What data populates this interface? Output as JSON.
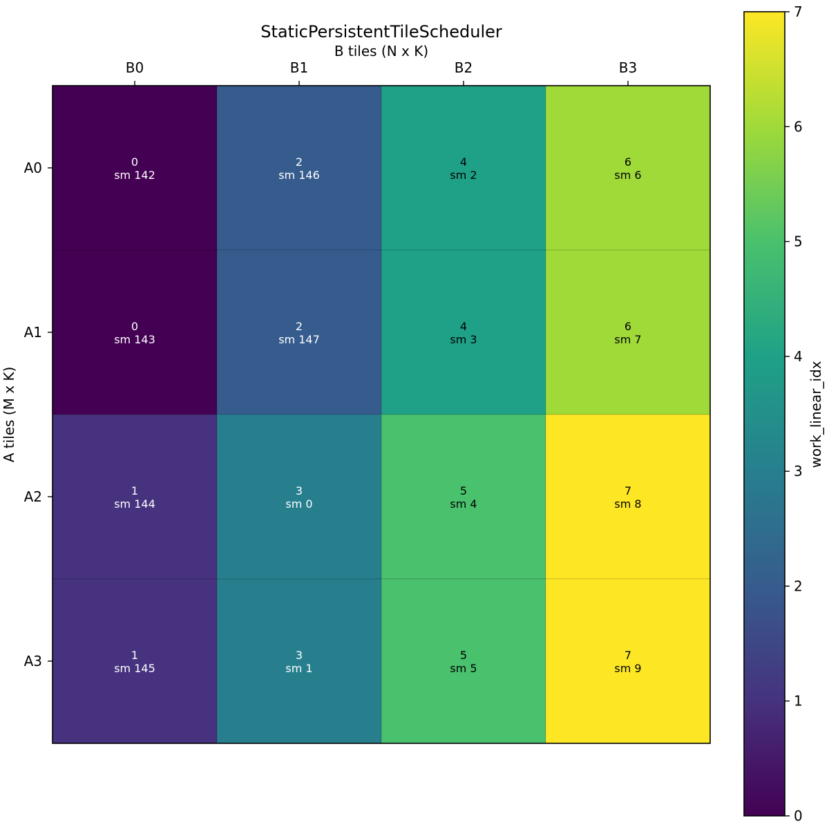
{
  "chart_data": [
    {
      "type": "heatmap",
      "title": "StaticPersistentTileScheduler",
      "xlabel": "B tiles (N x K)",
      "ylabel": "A tiles (M x K)",
      "x_categories": [
        "B0",
        "B1",
        "B2",
        "B3"
      ],
      "y_categories": [
        "A0",
        "A1",
        "A2",
        "A3"
      ],
      "values": [
        [
          0,
          2,
          4,
          6
        ],
        [
          0,
          2,
          4,
          6
        ],
        [
          1,
          3,
          5,
          7
        ],
        [
          1,
          3,
          5,
          7
        ]
      ],
      "cell_labels": [
        [
          [
            "0",
            "sm 142"
          ],
          [
            "2",
            "sm 146"
          ],
          [
            "4",
            "sm 2"
          ],
          [
            "6",
            "sm 6"
          ]
        ],
        [
          [
            "0",
            "sm 143"
          ],
          [
            "2",
            "sm 147"
          ],
          [
            "4",
            "sm 3"
          ],
          [
            "6",
            "sm 7"
          ]
        ],
        [
          [
            "1",
            "sm 144"
          ],
          [
            "3",
            "sm 0"
          ],
          [
            "5",
            "sm 4"
          ],
          [
            "7",
            "sm 8"
          ]
        ],
        [
          [
            "1",
            "sm 145"
          ],
          [
            "3",
            "sm 1"
          ],
          [
            "5",
            "sm 5"
          ],
          [
            "7",
            "sm 9"
          ]
        ]
      ],
      "colormap": "viridis",
      "x_axis_position": "top",
      "colorbar": {
        "label": "work_linear_idx",
        "range": [
          0,
          7
        ],
        "ticks": [
          0,
          1,
          2,
          3,
          4,
          5,
          6,
          7
        ]
      },
      "colors": {
        "0": "#440154",
        "1": "#46327e",
        "2": "#365c8d",
        "3": "#277f8e",
        "4": "#1fa187",
        "5": "#4ac16d",
        "6": "#a0da39",
        "7": "#fde725"
      },
      "label_text_colors": {
        "light": "#ffffff",
        "dark": "#000000"
      }
    }
  ]
}
